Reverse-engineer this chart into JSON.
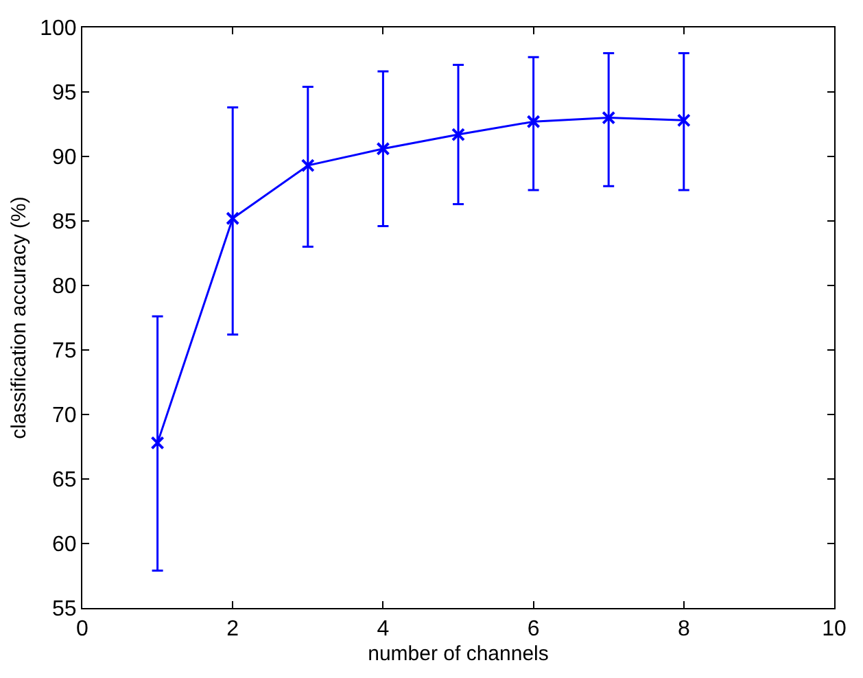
{
  "chart_data": {
    "type": "line",
    "xlabel": "number of channels",
    "ylabel": "classification accuracy (%)",
    "x": [
      1,
      2,
      3,
      4,
      5,
      6,
      7,
      8
    ],
    "series": [
      {
        "color": "#0000ff",
        "values": [
          67.8,
          85.2,
          89.3,
          90.6,
          91.7,
          92.7,
          93.0,
          92.8
        ],
        "errors": [
          [
            57.9,
            77.6
          ],
          [
            76.2,
            93.8
          ],
          [
            83.0,
            95.4
          ],
          [
            84.6,
            96.6
          ],
          [
            86.3,
            97.1
          ],
          [
            87.4,
            97.7
          ],
          [
            87.7,
            98.0
          ],
          [
            87.4,
            98.0
          ]
        ]
      }
    ],
    "xlim": [
      0,
      10
    ],
    "xticks": [
      0,
      2,
      4,
      6,
      8,
      10
    ],
    "ylim": [
      55,
      100
    ],
    "yticks": [
      55,
      60,
      65,
      70,
      75,
      80,
      85,
      90,
      95,
      100
    ],
    "legend": false,
    "marker": "cross",
    "line_style": "solid"
  }
}
